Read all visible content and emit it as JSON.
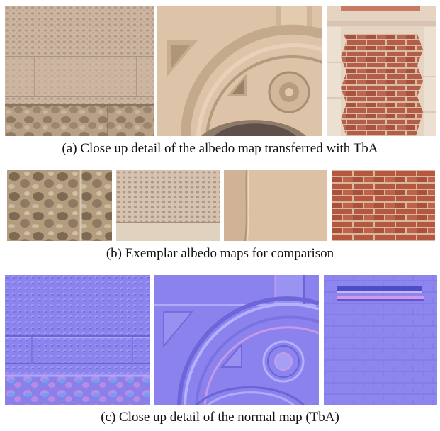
{
  "figure": {
    "row_a": {
      "caption": "(a) Close up detail of the albedo map transferred with TbA",
      "panels": [
        "stone-wall-albedo",
        "arched-window-albedo",
        "brick-pier-albedo"
      ]
    },
    "row_b": {
      "caption": "(b) Exemplar albedo maps for comparison",
      "panels": [
        "rough-stone-exemplar",
        "cobble-stone-exemplar",
        "smooth-plaster-exemplar",
        "red-brick-exemplar"
      ]
    },
    "row_c": {
      "caption": "(c) Close up detail of the normal map (TbA)",
      "panels": [
        "stone-wall-normal",
        "arched-window-normal",
        "brick-pier-normal"
      ]
    }
  },
  "colors": {
    "albedo_stone": "#c9b3a0",
    "albedo_plaster": "#dcc2a6",
    "brick_red": "#b55a45",
    "normal_base": "#8f86f0"
  }
}
